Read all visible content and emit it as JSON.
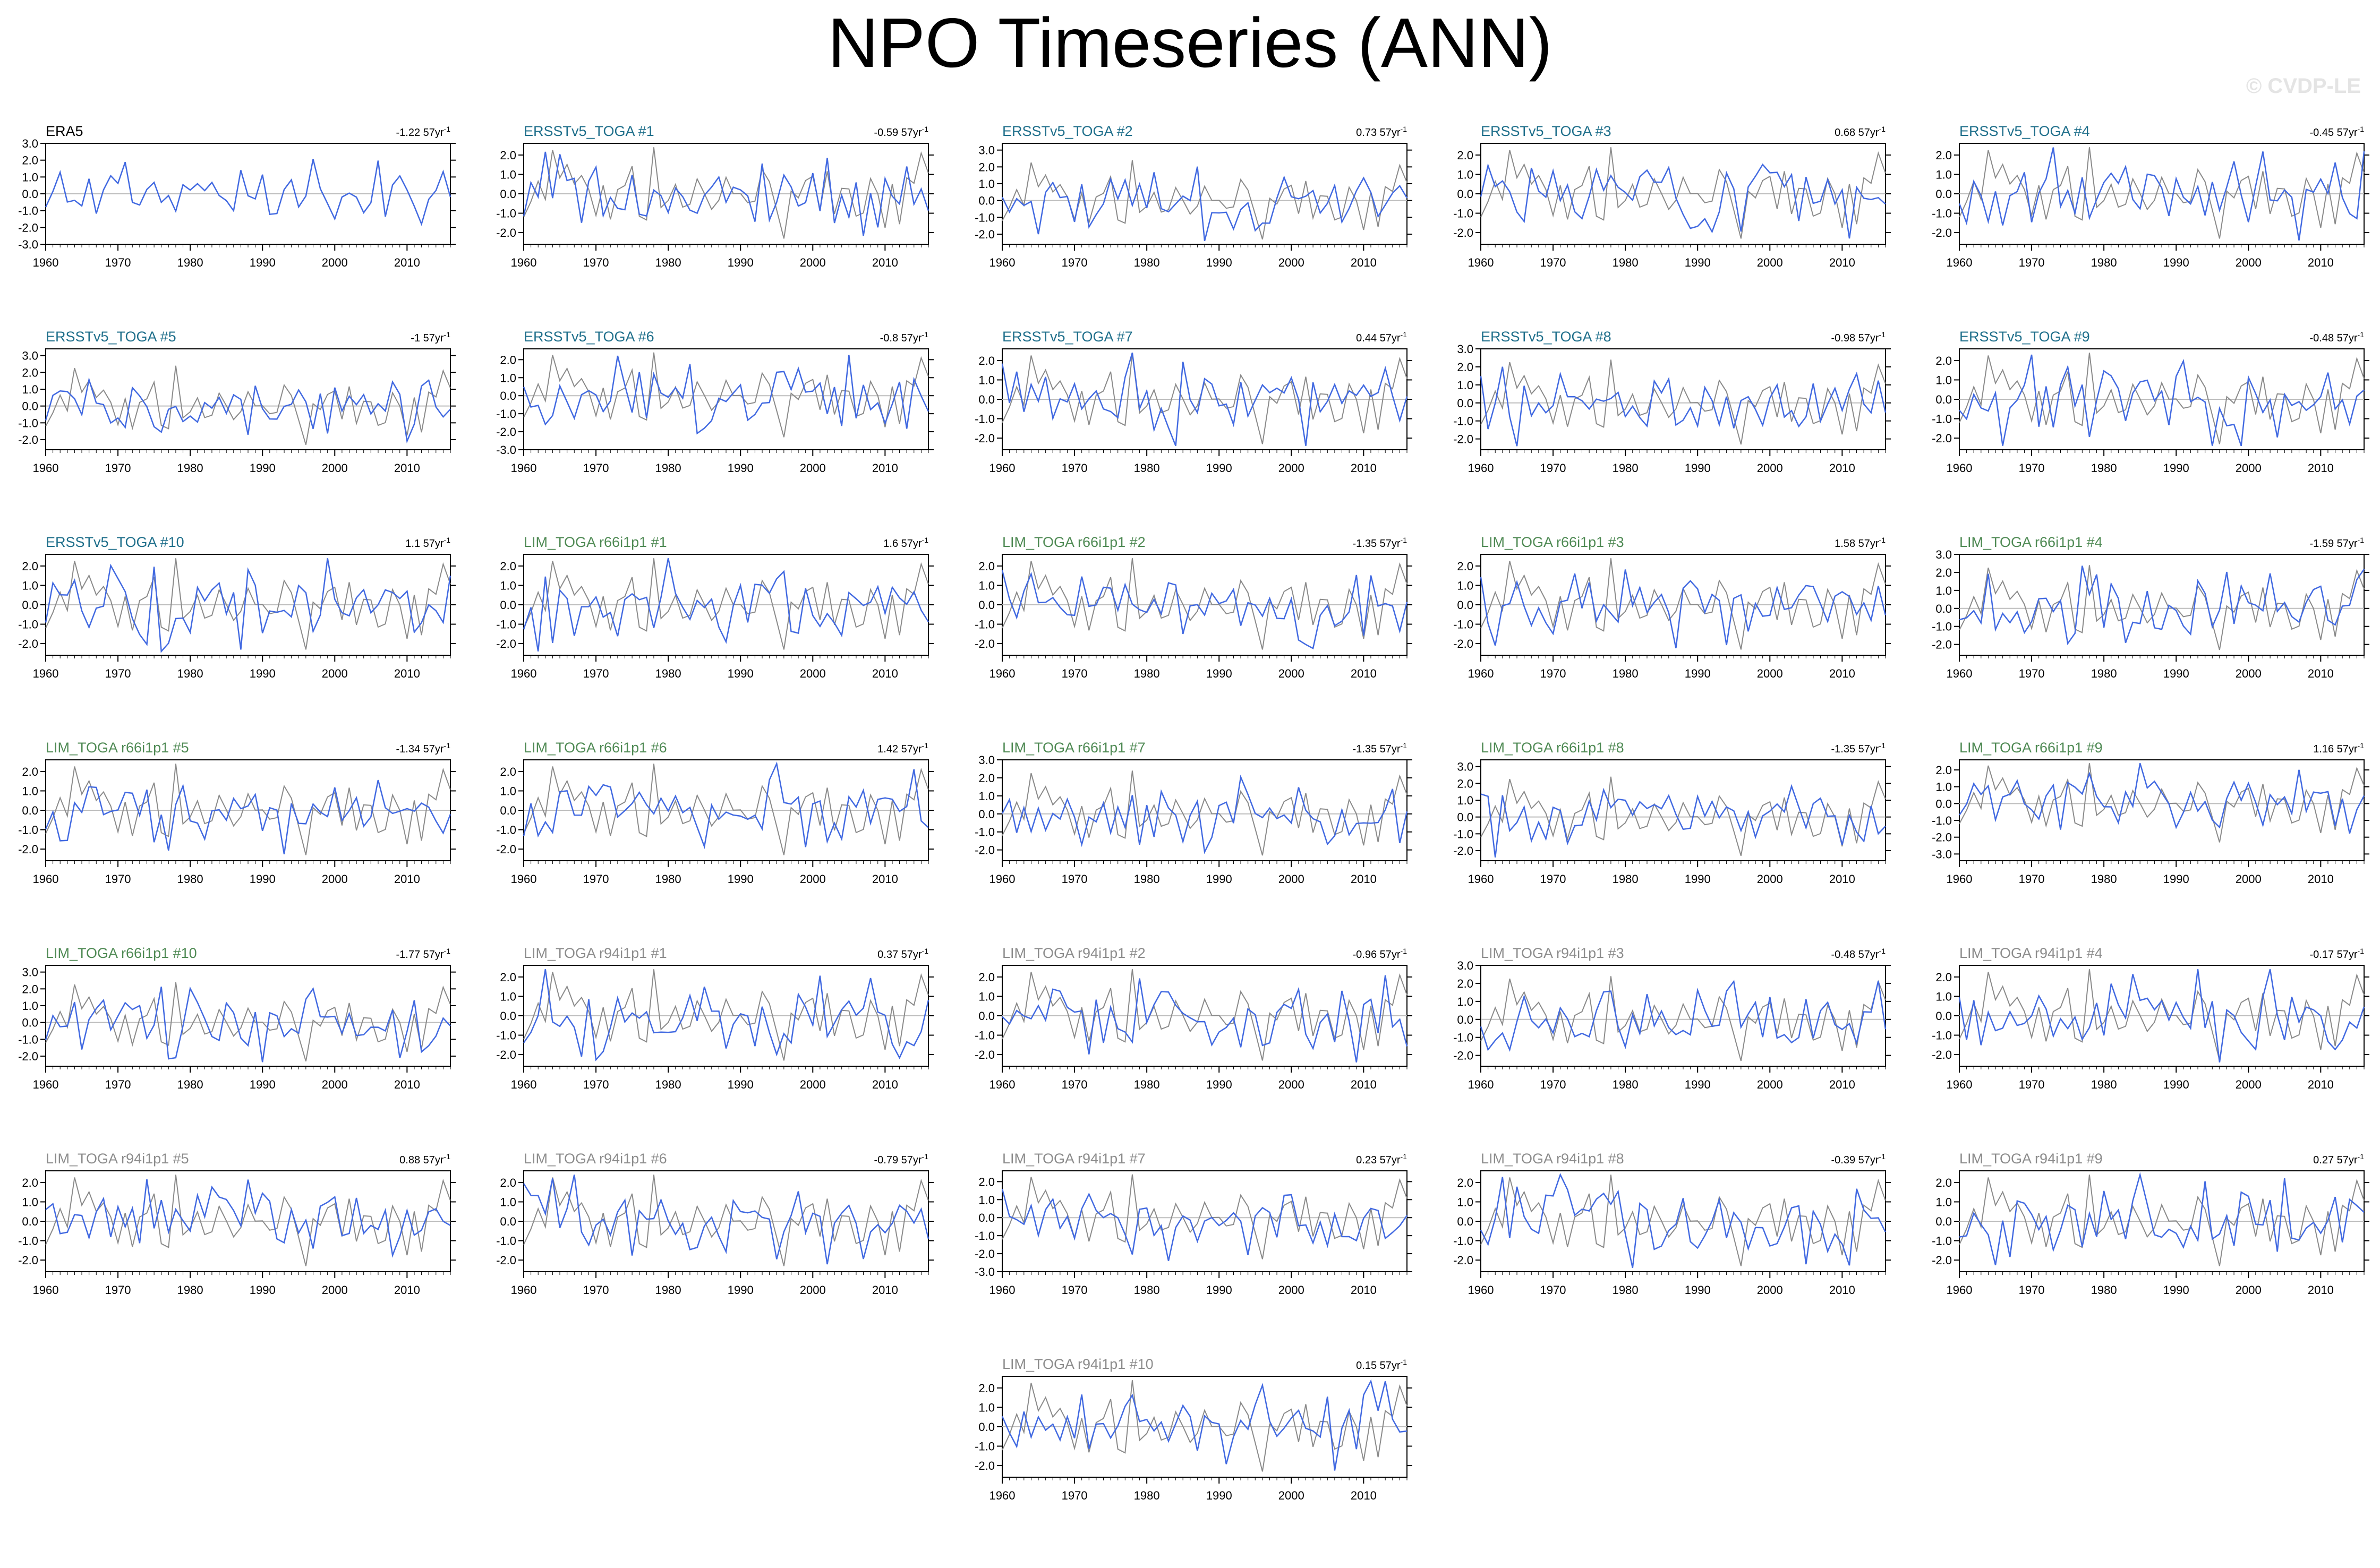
{
  "title": "NPO Timeseries (ANN)",
  "watermark": "© CVDP-LE",
  "colors": {
    "obs_series": "#4169e1",
    "reference_series": "#8a8a8a",
    "zero_line": "#bdbdbd",
    "title_obs": "#000000",
    "title_ersst": "#1f6f8b",
    "title_lim66": "#4f8a54",
    "title_lim94": "#8c8c8c"
  },
  "chart_data": {
    "type": "line",
    "x_start": 1960,
    "x_end": 2016,
    "xticks": [
      1960,
      1970,
      1980,
      1990,
      2000,
      2010
    ],
    "grid": false,
    "panels": [
      {
        "title": "ERA5",
        "trend": "-1.22 57yr",
        "group": "obs",
        "ylim": [
          -3,
          3
        ],
        "yticks": [
          3,
          2,
          1,
          0,
          -1,
          -2,
          -3
        ],
        "seed": 11
      },
      {
        "title": "ERSSTv5_TOGA #1",
        "trend": "-0.59 57yr",
        "group": "ersst",
        "ylim": [
          -2.6,
          2.6
        ],
        "yticks": [
          2,
          1,
          0,
          -1,
          -2
        ],
        "seed": 12
      },
      {
        "title": "ERSSTv5_TOGA #2",
        "trend": "0.73 57yr",
        "group": "ersst",
        "ylim": [
          -2.6,
          3.4
        ],
        "yticks": [
          3,
          2,
          1,
          0,
          -1,
          -2
        ],
        "seed": 13
      },
      {
        "title": "ERSSTv5_TOGA #3",
        "trend": "0.68 57yr",
        "group": "ersst",
        "ylim": [
          -2.6,
          2.6
        ],
        "yticks": [
          2,
          1,
          0,
          -1,
          -2
        ],
        "seed": 14
      },
      {
        "title": "ERSSTv5_TOGA #4",
        "trend": "-0.45 57yr",
        "group": "ersst",
        "ylim": [
          -2.6,
          2.6
        ],
        "yticks": [
          2,
          1,
          0,
          -1,
          -2
        ],
        "seed": 15
      },
      {
        "title": "ERSSTv5_TOGA #5",
        "trend": "-1 57yr",
        "group": "ersst",
        "ylim": [
          -2.6,
          3.4
        ],
        "yticks": [
          3,
          2,
          1,
          0,
          -1,
          -2
        ],
        "seed": 16
      },
      {
        "title": "ERSSTv5_TOGA #6",
        "trend": "-0.8 57yr",
        "group": "ersst",
        "ylim": [
          -3,
          2.6
        ],
        "yticks": [
          2,
          1,
          0,
          -1,
          -2,
          -3
        ],
        "seed": 17
      },
      {
        "title": "ERSSTv5_TOGA #7",
        "trend": "0.44 57yr",
        "group": "ersst",
        "ylim": [
          -2.6,
          2.6
        ],
        "yticks": [
          2,
          1,
          0,
          -1,
          -2
        ],
        "seed": 18
      },
      {
        "title": "ERSSTv5_TOGA #8",
        "trend": "-0.98 57yr",
        "group": "ersst",
        "ylim": [
          -2.6,
          3
        ],
        "yticks": [
          3,
          2,
          1,
          0,
          -1,
          -2
        ],
        "seed": 19
      },
      {
        "title": "ERSSTv5_TOGA #9",
        "trend": "-0.48 57yr",
        "group": "ersst",
        "ylim": [
          -2.6,
          2.6
        ],
        "yticks": [
          2,
          1,
          0,
          -1,
          -2
        ],
        "seed": 20
      },
      {
        "title": "ERSSTv5_TOGA #10",
        "trend": "1.1 57yr",
        "group": "ersst",
        "ylim": [
          -2.6,
          2.6
        ],
        "yticks": [
          2,
          1,
          0,
          -1,
          -2
        ],
        "seed": 21
      },
      {
        "title": "LIM_TOGA r66i1p1 #1",
        "trend": "1.6 57yr",
        "group": "lim66",
        "ylim": [
          -2.6,
          2.6
        ],
        "yticks": [
          2,
          1,
          0,
          -1,
          -2
        ],
        "seed": 22
      },
      {
        "title": "LIM_TOGA r66i1p1 #2",
        "trend": "-1.35 57yr",
        "group": "lim66",
        "ylim": [
          -2.6,
          2.6
        ],
        "yticks": [
          2,
          1,
          0,
          -1,
          -2
        ],
        "seed": 23
      },
      {
        "title": "LIM_TOGA r66i1p1 #3",
        "trend": "1.58 57yr",
        "group": "lim66",
        "ylim": [
          -2.6,
          2.6
        ],
        "yticks": [
          2,
          1,
          0,
          -1,
          -2
        ],
        "seed": 24
      },
      {
        "title": "LIM_TOGA r66i1p1 #4",
        "trend": "-1.59 57yr",
        "group": "lim66",
        "ylim": [
          -2.6,
          3
        ],
        "yticks": [
          3,
          2,
          1,
          0,
          -1,
          -2
        ],
        "seed": 25
      },
      {
        "title": "LIM_TOGA r66i1p1 #5",
        "trend": "-1.34 57yr",
        "group": "lim66",
        "ylim": [
          -2.6,
          2.6
        ],
        "yticks": [
          2,
          1,
          0,
          -1,
          -2
        ],
        "seed": 26
      },
      {
        "title": "LIM_TOGA r66i1p1 #6",
        "trend": "1.42 57yr",
        "group": "lim66",
        "ylim": [
          -2.6,
          2.6
        ],
        "yticks": [
          2,
          1,
          0,
          -1,
          -2
        ],
        "seed": 27
      },
      {
        "title": "LIM_TOGA r66i1p1 #7",
        "trend": "-1.35 57yr",
        "group": "lim66",
        "ylim": [
          -2.6,
          3
        ],
        "yticks": [
          3,
          2,
          1,
          0,
          -1,
          -2
        ],
        "seed": 28
      },
      {
        "title": "LIM_TOGA r66i1p1 #8",
        "trend": "-1.35 57yr",
        "group": "lim66",
        "ylim": [
          -2.6,
          3.4
        ],
        "yticks": [
          3,
          2,
          1,
          0,
          -1,
          -2
        ],
        "seed": 29
      },
      {
        "title": "LIM_TOGA r66i1p1 #9",
        "trend": "1.16 57yr",
        "group": "lim66",
        "ylim": [
          -3.4,
          2.6
        ],
        "yticks": [
          2,
          1,
          0,
          -1,
          -2,
          -3
        ],
        "seed": 30
      },
      {
        "title": "LIM_TOGA r66i1p1 #10",
        "trend": "-1.77 57yr",
        "group": "lim66",
        "ylim": [
          -2.6,
          3.4
        ],
        "yticks": [
          3,
          2,
          1,
          0,
          -1,
          -2
        ],
        "seed": 31
      },
      {
        "title": "LIM_TOGA r94i1p1 #1",
        "trend": "0.37 57yr",
        "group": "lim94",
        "ylim": [
          -2.6,
          2.6
        ],
        "yticks": [
          2,
          1,
          0,
          -1,
          -2
        ],
        "seed": 32
      },
      {
        "title": "LIM_TOGA r94i1p1 #2",
        "trend": "-0.96 57yr",
        "group": "lim94",
        "ylim": [
          -2.6,
          2.6
        ],
        "yticks": [
          2,
          1,
          0,
          -1,
          -2
        ],
        "seed": 33
      },
      {
        "title": "LIM_TOGA r94i1p1 #3",
        "trend": "-0.48 57yr",
        "group": "lim94",
        "ylim": [
          -2.6,
          3
        ],
        "yticks": [
          3,
          2,
          1,
          0,
          -1,
          -2
        ],
        "seed": 34
      },
      {
        "title": "LIM_TOGA r94i1p1 #4",
        "trend": "-0.17 57yr",
        "group": "lim94",
        "ylim": [
          -2.6,
          2.6
        ],
        "yticks": [
          2,
          1,
          0,
          -1,
          -2
        ],
        "seed": 35
      },
      {
        "title": "LIM_TOGA r94i1p1 #5",
        "trend": "0.88 57yr",
        "group": "lim94",
        "ylim": [
          -2.6,
          2.6
        ],
        "yticks": [
          2,
          1,
          0,
          -1,
          -2
        ],
        "seed": 36
      },
      {
        "title": "LIM_TOGA r94i1p1 #6",
        "trend": "-0.79 57yr",
        "group": "lim94",
        "ylim": [
          -2.6,
          2.6
        ],
        "yticks": [
          2,
          1,
          0,
          -1,
          -2
        ],
        "seed": 37
      },
      {
        "title": "LIM_TOGA r94i1p1 #7",
        "trend": "0.23 57yr",
        "group": "lim94",
        "ylim": [
          -3,
          2.6
        ],
        "yticks": [
          2,
          1,
          0,
          -1,
          -2,
          -3
        ],
        "seed": 38
      },
      {
        "title": "LIM_TOGA r94i1p1 #8",
        "trend": "-0.39 57yr",
        "group": "lim94",
        "ylim": [
          -2.6,
          2.6
        ],
        "yticks": [
          2,
          1,
          0,
          -1,
          -2
        ],
        "seed": 39
      },
      {
        "title": "LIM_TOGA r94i1p1 #9",
        "trend": "0.27 57yr",
        "group": "lim94",
        "ylim": [
          -2.6,
          2.6
        ],
        "yticks": [
          2,
          1,
          0,
          -1,
          -2
        ],
        "seed": 40
      },
      {
        "title": "LIM_TOGA r94i1p1 #10",
        "trend": "0.15 57yr",
        "group": "lim94",
        "ylim": [
          -2.6,
          2.6
        ],
        "yticks": [
          2,
          1,
          0,
          -1,
          -2
        ],
        "seed": 41
      }
    ]
  }
}
